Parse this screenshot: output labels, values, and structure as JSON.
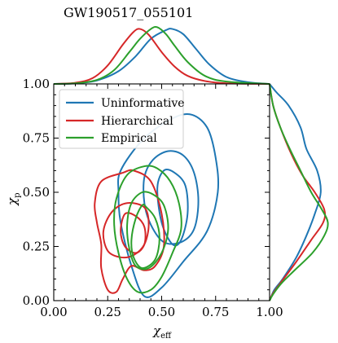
{
  "chart_data": {
    "type": "contour",
    "title": "GW190517_055101",
    "xlabel": "χ",
    "xlabel_sub": "eff",
    "ylabel": "χ",
    "ylabel_sub": "p",
    "xlim": [
      0.0,
      1.0
    ],
    "ylim": [
      0.0,
      1.0
    ],
    "xticks": [
      "0.00",
      "0.25",
      "0.50",
      "0.75",
      "1.00"
    ],
    "yticks": [
      "0.00",
      "0.25",
      "0.50",
      "0.75",
      "1.00"
    ],
    "legend_position": "top-left",
    "marginals": [
      "top",
      "right"
    ],
    "series": [
      {
        "name": "Uninformative",
        "color": "#1f77b4",
        "contours": [
          [
            [
              0.63,
              0.86
            ],
            [
              0.53,
              0.83
            ],
            [
              0.41,
              0.74
            ],
            [
              0.31,
              0.6
            ],
            [
              0.3,
              0.5
            ],
            [
              0.31,
              0.36
            ],
            [
              0.36,
              0.16
            ],
            [
              0.42,
              0.02
            ],
            [
              0.5,
              0.06
            ],
            [
              0.6,
              0.18
            ],
            [
              0.71,
              0.32
            ],
            [
              0.76,
              0.5
            ],
            [
              0.75,
              0.66
            ],
            [
              0.71,
              0.8
            ],
            [
              0.63,
              0.86
            ]
          ],
          [
            [
              0.53,
              0.69
            ],
            [
              0.46,
              0.65
            ],
            [
              0.42,
              0.57
            ],
            [
              0.42,
              0.45
            ],
            [
              0.45,
              0.35
            ],
            [
              0.51,
              0.27
            ],
            [
              0.59,
              0.27
            ],
            [
              0.65,
              0.33
            ],
            [
              0.67,
              0.46
            ],
            [
              0.65,
              0.59
            ],
            [
              0.6,
              0.67
            ],
            [
              0.53,
              0.69
            ]
          ],
          [
            [
              0.51,
              0.6
            ],
            [
              0.48,
              0.52
            ],
            [
              0.5,
              0.36
            ],
            [
              0.55,
              0.26
            ],
            [
              0.59,
              0.28
            ],
            [
              0.62,
              0.4
            ],
            [
              0.61,
              0.53
            ],
            [
              0.56,
              0.59
            ],
            [
              0.51,
              0.6
            ]
          ]
        ],
        "marginal_x": [
          [
            0.0,
            0.0
          ],
          [
            0.1,
            0.01
          ],
          [
            0.2,
            0.06
          ],
          [
            0.3,
            0.22
          ],
          [
            0.38,
            0.48
          ],
          [
            0.45,
            0.78
          ],
          [
            0.52,
            0.93
          ],
          [
            0.55,
            0.95
          ],
          [
            0.6,
            0.86
          ],
          [
            0.66,
            0.6
          ],
          [
            0.72,
            0.34
          ],
          [
            0.8,
            0.12
          ],
          [
            0.9,
            0.03
          ],
          [
            1.0,
            0.0
          ]
        ],
        "marginal_y": [
          [
            0.0,
            0.0
          ],
          [
            0.05,
            0.08
          ],
          [
            0.1,
            0.22
          ],
          [
            0.2,
            0.45
          ],
          [
            0.3,
            0.62
          ],
          [
            0.4,
            0.76
          ],
          [
            0.5,
            0.86
          ],
          [
            0.6,
            0.8
          ],
          [
            0.7,
            0.62
          ],
          [
            0.8,
            0.52
          ],
          [
            0.9,
            0.32
          ],
          [
            0.96,
            0.12
          ],
          [
            1.0,
            0.0
          ]
        ]
      },
      {
        "name": "Hierarchical",
        "color": "#d62728",
        "contours": [
          [
            [
              0.32,
              0.59
            ],
            [
              0.22,
              0.55
            ],
            [
              0.19,
              0.45
            ],
            [
              0.2,
              0.36
            ],
            [
              0.22,
              0.26
            ],
            [
              0.22,
              0.15
            ],
            [
              0.25,
              0.05
            ],
            [
              0.29,
              0.04
            ],
            [
              0.32,
              0.1
            ],
            [
              0.36,
              0.16
            ],
            [
              0.42,
              0.14
            ],
            [
              0.47,
              0.16
            ],
            [
              0.51,
              0.25
            ],
            [
              0.5,
              0.4
            ],
            [
              0.45,
              0.55
            ],
            [
              0.37,
              0.6
            ],
            [
              0.32,
              0.59
            ]
          ],
          [
            [
              0.34,
              0.45
            ],
            [
              0.27,
              0.41
            ],
            [
              0.23,
              0.32
            ],
            [
              0.25,
              0.23
            ],
            [
              0.31,
              0.2
            ],
            [
              0.37,
              0.21
            ],
            [
              0.42,
              0.26
            ],
            [
              0.44,
              0.35
            ],
            [
              0.42,
              0.43
            ],
            [
              0.34,
              0.45
            ]
          ],
          [
            [
              0.33,
              0.4
            ],
            [
              0.31,
              0.32
            ],
            [
              0.33,
              0.25
            ],
            [
              0.38,
              0.22
            ],
            [
              0.42,
              0.26
            ],
            [
              0.42,
              0.34
            ],
            [
              0.38,
              0.39
            ],
            [
              0.33,
              0.4
            ]
          ]
        ],
        "marginal_x": [
          [
            0.0,
            0.0
          ],
          [
            0.1,
            0.02
          ],
          [
            0.18,
            0.1
          ],
          [
            0.25,
            0.32
          ],
          [
            0.32,
            0.68
          ],
          [
            0.37,
            0.9
          ],
          [
            0.4,
            0.95
          ],
          [
            0.44,
            0.85
          ],
          [
            0.5,
            0.55
          ],
          [
            0.56,
            0.3
          ],
          [
            0.62,
            0.14
          ],
          [
            0.7,
            0.05
          ],
          [
            0.8,
            0.01
          ],
          [
            1.0,
            0.0
          ]
        ],
        "marginal_y": [
          [
            0.0,
            0.0
          ],
          [
            0.03,
            0.05
          ],
          [
            0.08,
            0.18
          ],
          [
            0.18,
            0.45
          ],
          [
            0.28,
            0.7
          ],
          [
            0.36,
            0.9
          ],
          [
            0.42,
            0.92
          ],
          [
            0.5,
            0.76
          ],
          [
            0.58,
            0.55
          ],
          [
            0.68,
            0.36
          ],
          [
            0.8,
            0.18
          ],
          [
            0.9,
            0.06
          ],
          [
            1.0,
            0.0
          ]
        ]
      },
      {
        "name": "Empirical",
        "color": "#2ca02c",
        "contours": [
          [
            [
              0.42,
              0.62
            ],
            [
              0.34,
              0.58
            ],
            [
              0.29,
              0.47
            ],
            [
              0.28,
              0.35
            ],
            [
              0.3,
              0.22
            ],
            [
              0.34,
              0.1
            ],
            [
              0.39,
              0.04
            ],
            [
              0.45,
              0.05
            ],
            [
              0.5,
              0.11
            ],
            [
              0.55,
              0.22
            ],
            [
              0.59,
              0.33
            ],
            [
              0.58,
              0.45
            ],
            [
              0.54,
              0.55
            ],
            [
              0.48,
              0.61
            ],
            [
              0.42,
              0.62
            ]
          ],
          [
            [
              0.41,
              0.5
            ],
            [
              0.36,
              0.45
            ],
            [
              0.34,
              0.35
            ],
            [
              0.35,
              0.24
            ],
            [
              0.38,
              0.16
            ],
            [
              0.44,
              0.15
            ],
            [
              0.5,
              0.22
            ],
            [
              0.53,
              0.33
            ],
            [
              0.51,
              0.44
            ],
            [
              0.46,
              0.49
            ],
            [
              0.41,
              0.5
            ]
          ],
          [
            [
              0.41,
              0.44
            ],
            [
              0.38,
              0.38
            ],
            [
              0.36,
              0.28
            ],
            [
              0.37,
              0.2
            ],
            [
              0.41,
              0.15
            ],
            [
              0.47,
              0.19
            ],
            [
              0.49,
              0.29
            ],
            [
              0.47,
              0.38
            ],
            [
              0.43,
              0.43
            ],
            [
              0.41,
              0.44
            ]
          ]
        ],
        "marginal_x": [
          [
            0.0,
            0.0
          ],
          [
            0.1,
            0.01
          ],
          [
            0.2,
            0.07
          ],
          [
            0.28,
            0.24
          ],
          [
            0.35,
            0.55
          ],
          [
            0.4,
            0.78
          ],
          [
            0.45,
            0.95
          ],
          [
            0.48,
            0.98
          ],
          [
            0.52,
            0.86
          ],
          [
            0.56,
            0.66
          ],
          [
            0.62,
            0.38
          ],
          [
            0.7,
            0.14
          ],
          [
            0.8,
            0.04
          ],
          [
            1.0,
            0.0
          ]
        ],
        "marginal_y": [
          [
            0.0,
            0.0
          ],
          [
            0.03,
            0.06
          ],
          [
            0.08,
            0.2
          ],
          [
            0.14,
            0.42
          ],
          [
            0.22,
            0.72
          ],
          [
            0.3,
            0.92
          ],
          [
            0.36,
            0.98
          ],
          [
            0.42,
            0.88
          ],
          [
            0.5,
            0.7
          ],
          [
            0.6,
            0.52
          ],
          [
            0.7,
            0.34
          ],
          [
            0.8,
            0.18
          ],
          [
            0.9,
            0.06
          ],
          [
            1.0,
            0.0
          ]
        ]
      }
    ]
  }
}
